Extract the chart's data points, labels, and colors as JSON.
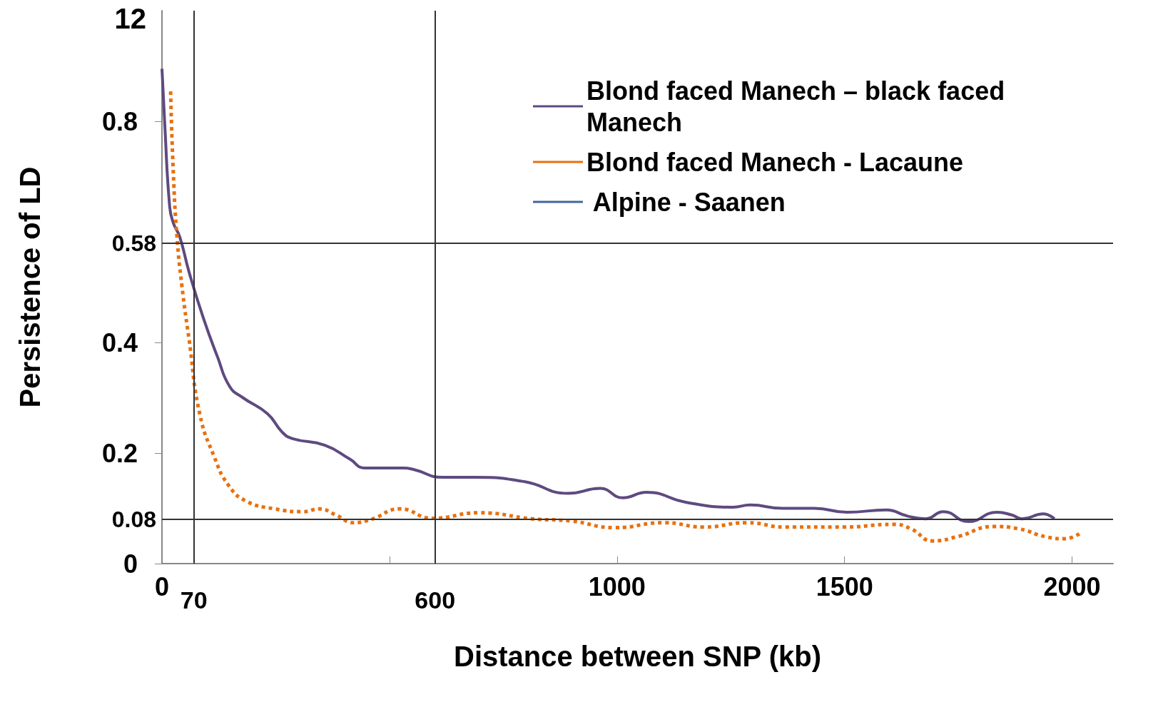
{
  "chart_data": {
    "type": "line",
    "xlabel": "Distance between SNP (kb)",
    "ylabel": "Persistence of LD",
    "annotations": [
      "12"
    ],
    "xlim": [
      0,
      2090
    ],
    "xticks": [
      0,
      {
        "value": 500,
        "label": null
      },
      1000,
      1500,
      2000
    ],
    "ylim": [
      0,
      1
    ],
    "yticks": [
      0,
      0.2,
      0.4,
      0.8
    ],
    "grid": false,
    "legend": "top right",
    "marker": "none",
    "ref_lines": [
      {
        "axis": "y",
        "value": 0.58,
        "label": "0.58",
        "color": "#333333"
      },
      {
        "axis": "y",
        "value": 0.08,
        "label": "0.08",
        "color": "#333333"
      },
      {
        "axis": "x",
        "value": 70,
        "label": "70",
        "color": "#333333"
      },
      {
        "axis": "x",
        "value": 600,
        "label": "600",
        "color": "#333333"
      }
    ],
    "series": [
      {
        "name": "Blond faced Manech – black faced Manech",
        "color": "#5e4a80",
        "line_style": "solid",
        "x": [
          0,
          6,
          17,
          25,
          39,
          60,
          91,
          122,
          149,
          178,
          232,
          264,
          287,
          358,
          413,
          445,
          531,
          554,
          617,
          688,
          798,
          892,
          963,
          1013,
          1065,
          1151,
          1254,
          1293,
          1364,
          1434,
          1505,
          1592,
          1638,
          1678,
          1717,
          1772,
          1835,
          1867,
          1890,
          1937,
          1961
        ],
        "values": [
          0.895,
          0.797,
          0.645,
          0.616,
          0.591,
          0.526,
          0.444,
          0.374,
          0.32,
          0.3,
          0.271,
          0.238,
          0.226,
          0.214,
          0.189,
          0.173,
          0.173,
          0.17,
          0.156,
          0.156,
          0.148,
          0.127,
          0.136,
          0.119,
          0.129,
          0.111,
          0.102,
          0.106,
          0.1,
          0.1,
          0.093,
          0.097,
          0.086,
          0.081,
          0.094,
          0.076,
          0.093,
          0.088,
          0.081,
          0.09,
          0.081
        ]
      },
      {
        "name": "Blond faced Manech - Lacaune",
        "color": "#e8710f",
        "line_style": "dotted",
        "x": [
          19,
          25,
          33,
          44,
          60,
          83,
          115,
          146,
          185,
          248,
          311,
          346,
          382,
          421,
          460,
          523,
          594,
          697,
          814,
          900,
          994,
          1104,
          1191,
          1285,
          1371,
          1497,
          1607,
          1646,
          1693,
          1749,
          1827,
          1882,
          1945,
          1984,
          2016
        ],
        "values": [
          0.854,
          0.706,
          0.591,
          0.501,
          0.403,
          0.271,
          0.193,
          0.142,
          0.113,
          0.099,
          0.094,
          0.099,
          0.088,
          0.074,
          0.08,
          0.099,
          0.082,
          0.092,
          0.081,
          0.077,
          0.065,
          0.074,
          0.066,
          0.074,
          0.066,
          0.066,
          0.071,
          0.063,
          0.041,
          0.049,
          0.067,
          0.063,
          0.048,
          0.045,
          0.054
        ]
      },
      {
        "name": " Alpine - Saanen",
        "color": "#42679e",
        "line_style": "solid"
      }
    ]
  }
}
